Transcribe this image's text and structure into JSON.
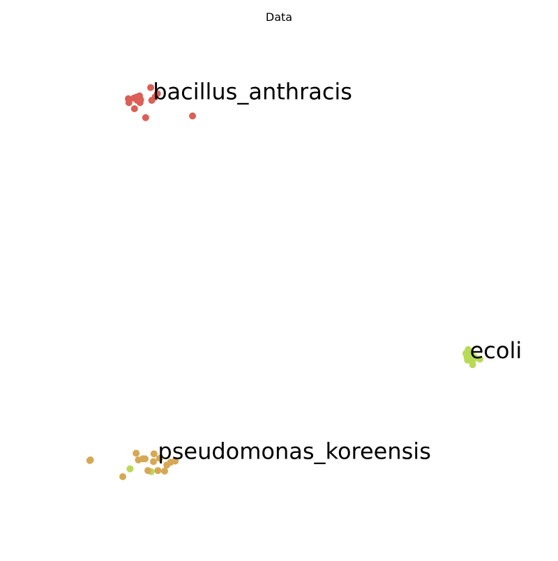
{
  "chart_data": {
    "type": "scatter",
    "title": "Data",
    "xlabel": "",
    "ylabel": "",
    "grid": false,
    "axes_visible": false,
    "xlim": [
      0,
      100
    ],
    "ylim": [
      0,
      100
    ],
    "series": [
      {
        "label": "bacillus_anthracis",
        "color": "#db5f57",
        "label_at": [
          27.4,
          83.3
        ],
        "points": [
          [
            27.0,
            84.3
          ],
          [
            23.0,
            82.3
          ],
          [
            24.0,
            82.4
          ],
          [
            25.0,
            82.8
          ],
          [
            25.2,
            82.1
          ],
          [
            24.6,
            82.0
          ],
          [
            23.1,
            81.6
          ],
          [
            24.1,
            80.5
          ],
          [
            25.1,
            81.6
          ],
          [
            27.8,
            82.6
          ],
          [
            28.2,
            83.2
          ],
          [
            26.1,
            78.9
          ],
          [
            34.5,
            79.2
          ],
          [
            27.2,
            82.0
          ],
          [
            24.5,
            82.6
          ]
        ]
      },
      {
        "label": "ecoli",
        "color": "#b9d957",
        "label_at": [
          84.2,
          36.9
        ],
        "points": [
          [
            83.5,
            36.6
          ],
          [
            83.8,
            35.4
          ],
          [
            84.0,
            36.0
          ],
          [
            84.6,
            35.2
          ],
          [
            84.7,
            34.6
          ],
          [
            83.9,
            37.3
          ],
          [
            85.2,
            35.8
          ],
          [
            86.0,
            35.6
          ],
          [
            83.7,
            35.9
          ],
          [
            84.6,
            36.4
          ],
          [
            23.3,
            15.9
          ],
          [
            27.1,
            15.4
          ]
        ]
      },
      {
        "label": "pseudomonas_koreensis",
        "color": "#d6a854",
        "label_at": [
          28.3,
          18.8
        ],
        "points": [
          [
            16.1,
            17.4
          ],
          [
            16.2,
            17.5
          ],
          [
            24.4,
            18.7
          ],
          [
            24.8,
            17.5
          ],
          [
            25.6,
            17.7
          ],
          [
            26.0,
            17.7
          ],
          [
            27.6,
            18.6
          ],
          [
            27.5,
            17.2
          ],
          [
            28.6,
            17.8
          ],
          [
            22.0,
            14.5
          ],
          [
            26.5,
            15.6
          ],
          [
            28.3,
            15.6
          ],
          [
            29.5,
            15.5
          ],
          [
            29.9,
            16.6
          ],
          [
            30.6,
            17.1
          ],
          [
            31.4,
            17.3
          ]
        ]
      }
    ]
  }
}
